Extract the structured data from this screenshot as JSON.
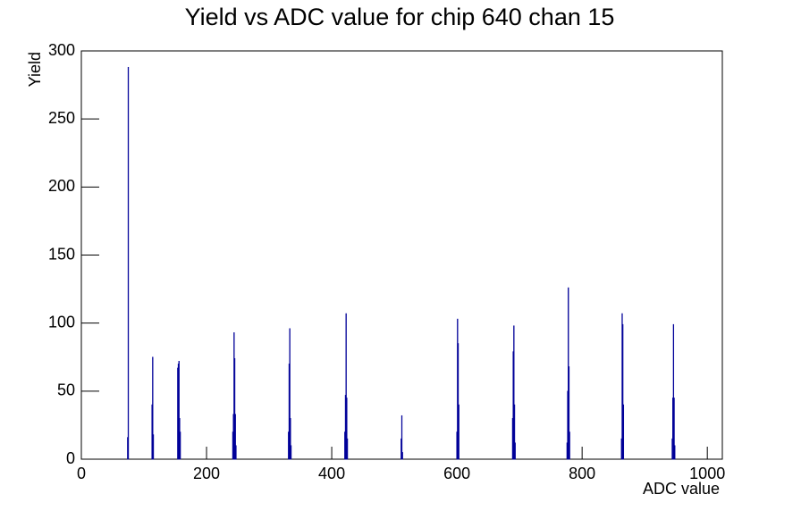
{
  "chart_data": {
    "type": "bar",
    "title": "Yield vs ADC value for chip 640 chan 15",
    "x_label": "ADC value",
    "y_label": "Yield",
    "x": [
      74,
      75,
      113,
      114,
      115,
      154,
      155,
      156,
      157,
      158,
      242,
      243,
      244,
      245,
      246,
      247,
      331,
      332,
      333,
      334,
      335,
      421,
      422,
      423,
      424,
      425,
      511,
      512,
      513,
      600,
      601,
      602,
      603,
      689,
      690,
      691,
      692,
      693,
      776,
      777,
      778,
      779,
      780,
      863,
      864,
      865,
      866,
      944,
      945,
      946,
      947,
      948
    ],
    "values": [
      16,
      288,
      40,
      75,
      18,
      67,
      70,
      72,
      30,
      20,
      20,
      33,
      93,
      74,
      33,
      10,
      20,
      70,
      96,
      30,
      10,
      20,
      47,
      107,
      45,
      15,
      15,
      32,
      5,
      20,
      103,
      85,
      40,
      30,
      79,
      98,
      40,
      12,
      12,
      50,
      126,
      68,
      20,
      15,
      107,
      99,
      40,
      15,
      45,
      99,
      45,
      10
    ],
    "color": "#000099",
    "xlim": [
      0,
      1024
    ],
    "ylim": [
      0,
      300
    ],
    "xticks": [
      0,
      200,
      400,
      600,
      800,
      1000
    ],
    "yticks": [
      0,
      50,
      100,
      150,
      200,
      250,
      300
    ]
  }
}
